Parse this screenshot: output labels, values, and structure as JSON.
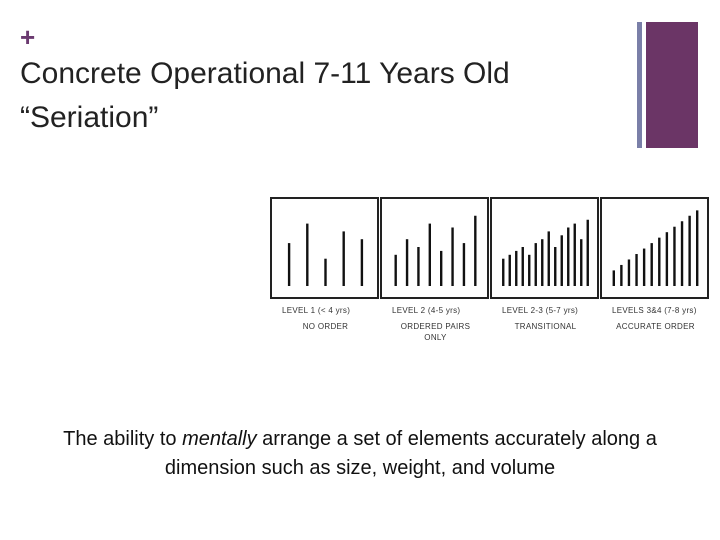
{
  "slide": {
    "plus_symbol": "+",
    "title_line1": "Concrete Operational 7-11 Years Old",
    "title_line2": "“Seriation”",
    "caption_before": "The ability to ",
    "caption_emphasis": "mentally",
    "caption_after": " arrange a set of elements accurately along a dimension such as size, weight, and volume",
    "accent_colors": {
      "thin_bar": "#7a7fa8",
      "thick_bar": "#6b3566",
      "plus": "#6b3a70"
    }
  },
  "figure": {
    "panels": [
      {
        "level": "LEVEL 1 (< 4 yrs)",
        "caption": [
          "NO ORDER"
        ],
        "sticks": [
          0.55,
          0.8,
          0.35,
          0.7,
          0.6
        ]
      },
      {
        "level": "LEVEL 2 (4-5 yrs)",
        "caption": [
          "ORDERED PAIRS",
          "ONLY"
        ],
        "sticks": [
          0.4,
          0.6,
          0.5,
          0.8,
          0.45,
          0.75,
          0.55,
          0.9
        ]
      },
      {
        "level": "LEVEL 2-3 (5-7 yrs)",
        "caption": [
          "TRANSITIONAL"
        ],
        "sticks": [
          0.35,
          0.4,
          0.45,
          0.5,
          0.4,
          0.55,
          0.6,
          0.7,
          0.5,
          0.65,
          0.75,
          0.8,
          0.6,
          0.85
        ]
      },
      {
        "level": "LEVELS 3&4 (7-8 yrs)",
        "caption": [
          "ACCURATE ORDER"
        ],
        "sticks": [
          0.2,
          0.27,
          0.34,
          0.41,
          0.48,
          0.55,
          0.62,
          0.69,
          0.76,
          0.83,
          0.9,
          0.97
        ]
      }
    ]
  }
}
